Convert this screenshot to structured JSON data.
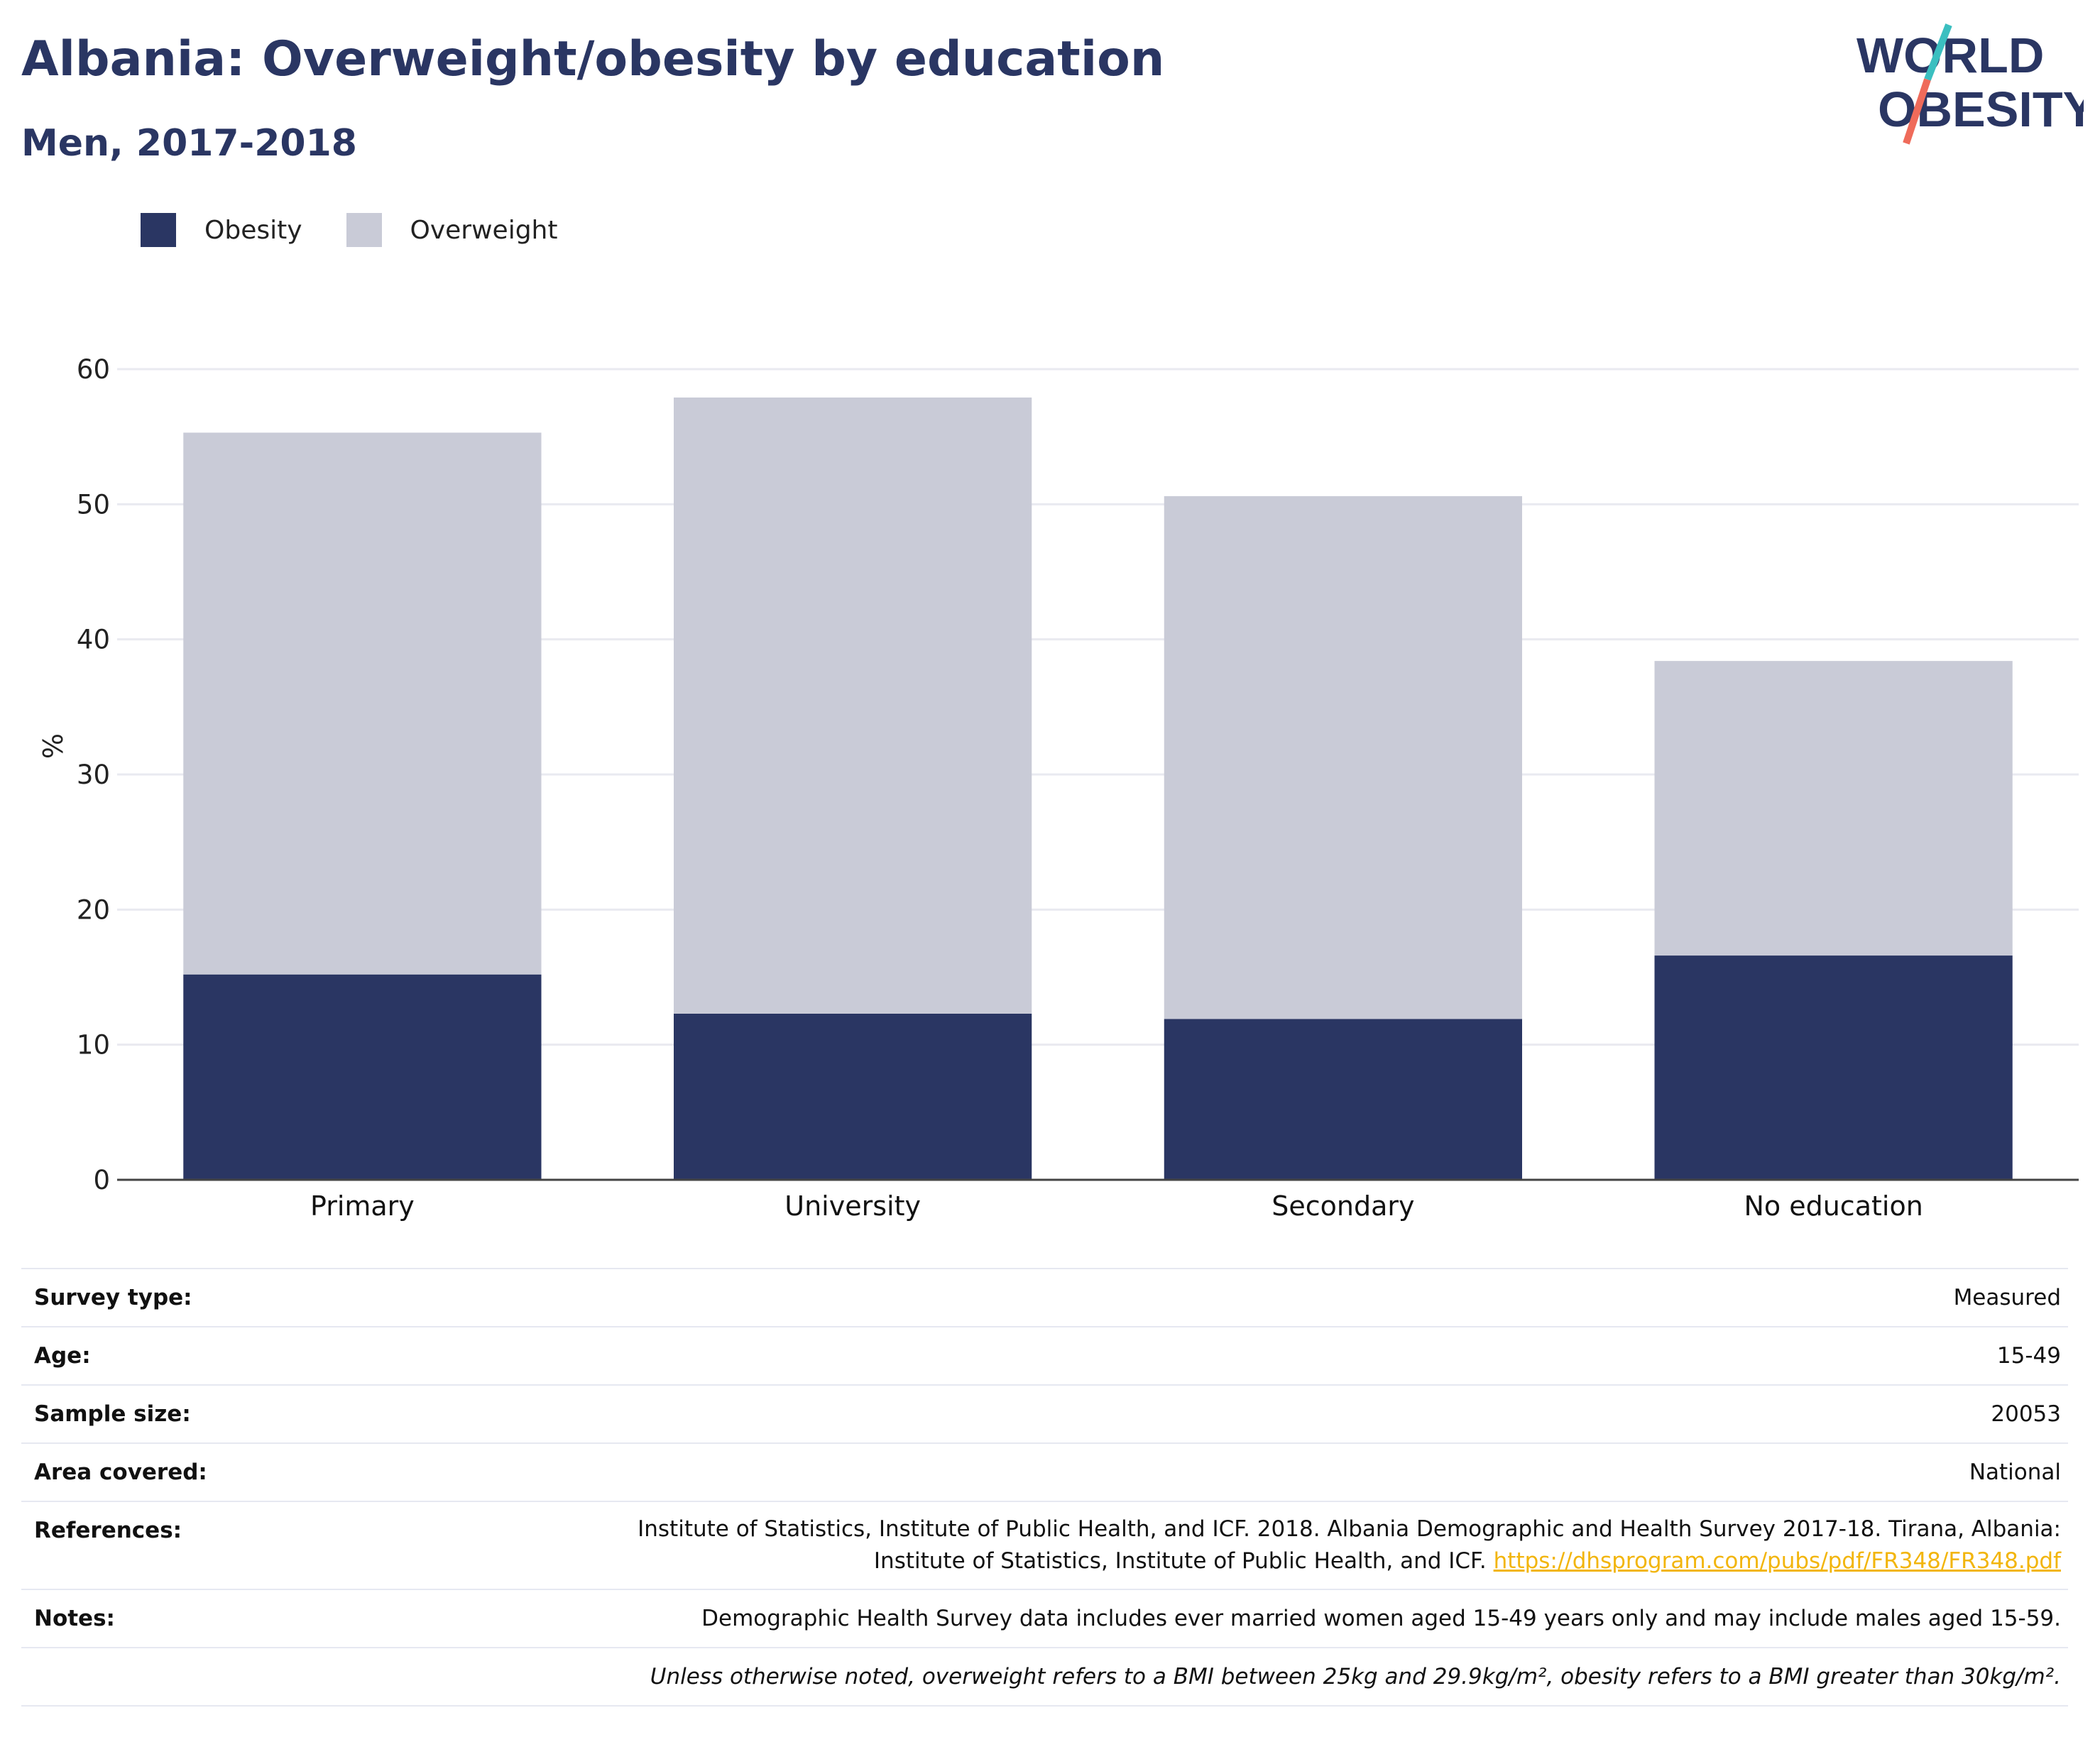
{
  "header": {
    "title": "Albania: Overweight/obesity by education",
    "subtitle": "Men, 2017-2018"
  },
  "logo": {
    "line1": "WORLD",
    "line2": "OBESITY",
    "colors": {
      "text": "#2a3663",
      "slash_top": "#3bbfc0",
      "slash_bottom": "#ef6b5a"
    }
  },
  "legend": [
    {
      "label": "Obesity",
      "color": "#2a3663"
    },
    {
      "label": "Overweight",
      "color": "#c9cbd7"
    }
  ],
  "chart_data": {
    "type": "bar",
    "stacked": true,
    "categories": [
      "Primary",
      "University",
      "Secondary",
      "No education"
    ],
    "series": [
      {
        "name": "Obesity",
        "color": "#2a3663",
        "values": [
          15.2,
          12.3,
          11.9,
          16.6
        ]
      },
      {
        "name": "Overweight",
        "color": "#c9cbd7",
        "values": [
          40.1,
          45.6,
          38.7,
          21.8
        ]
      }
    ],
    "title": "Albania: Overweight/obesity by education",
    "subtitle": "Men, 2017-2018",
    "xlabel": "",
    "ylabel": "%",
    "ylim": [
      0,
      60
    ],
    "yticks": [
      0,
      10,
      20,
      30,
      40,
      50,
      60
    ],
    "grid": true,
    "legend_position": "top-left"
  },
  "info": {
    "survey_type": {
      "label": "Survey type:",
      "value": "Measured"
    },
    "age": {
      "label": "Age:",
      "value": "15-49"
    },
    "sample_size": {
      "label": "Sample size:",
      "value": "20053"
    },
    "area": {
      "label": "Area covered:",
      "value": "National"
    },
    "references": {
      "label": "References:",
      "line1": "Institute of Statistics, Institute of Public Health, and ICF. 2018. Albania Demographic and Health Survey 2017-18. Tirana, Albania:",
      "line2": "Institute of Statistics, Institute of Public Health, and ICF.",
      "link": "https://dhsprogram.com/pubs/pdf/FR348/FR348.pdf"
    },
    "notes": {
      "label": "Notes:",
      "value": "Demographic Health Survey data includes ever married women aged 15-49 years only and may include males aged 15-59."
    },
    "definition": "Unless otherwise noted, overweight refers to a BMI between 25kg and 29.9kg/m², obesity refers to a BMI greater than 30kg/m²."
  }
}
